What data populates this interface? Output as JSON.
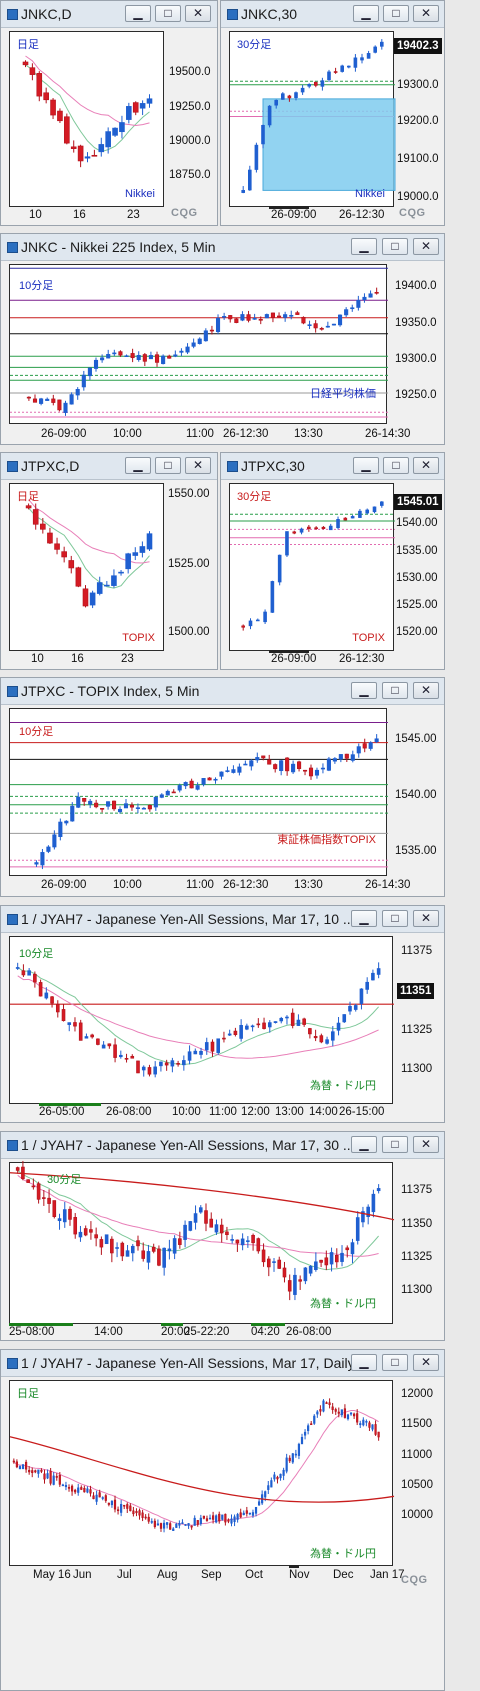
{
  "colors": {
    "up": "#1f5fd0",
    "down": "#b3121b",
    "ma_pink": "#e87fb8",
    "ma_green": "#7fc89a",
    "ma_red": "#c81c1c"
  },
  "windows": [
    {
      "id": "w1",
      "title": "JNKC,D",
      "period": "日足",
      "corner": "Nikkei",
      "corner_color": "#1a2fbf",
      "period_color": "#1a2fbf",
      "y_ticks": [
        "19500.0",
        "19250.0",
        "19000.0",
        "18750.0"
      ],
      "x_ticks": [
        "10",
        "16",
        "23"
      ]
    },
    {
      "id": "w2",
      "title": "JNKC,30",
      "period": "30分足",
      "corner": "Nikkei",
      "corner_color": "#1a2fbf",
      "period_color": "#1a2fbf",
      "price": "19402.3",
      "y_ticks": [
        "19300.0",
        "19200.0",
        "19100.0",
        "19000.0"
      ],
      "x_ticks": [
        "26-09:00",
        "26-12:30"
      ]
    },
    {
      "id": "w3",
      "title": "JNKC - Nikkei 225 Index, 5 Min",
      "period": "10分足",
      "corner": "日経平均株価",
      "corner_color": "#1a2fbf",
      "period_color": "#1a2fbf",
      "y_ticks": [
        "19400.0",
        "19350.0",
        "19300.0",
        "19250.0"
      ],
      "x_ticks": [
        "26-09:00",
        "10:00",
        "11:00",
        "26-12:30",
        "13:30",
        "26-14:30"
      ]
    },
    {
      "id": "w4",
      "title": "JTPXC,D",
      "period": "日足",
      "corner": "TOPIX",
      "corner_color": "#c81c1c",
      "period_color": "#c81c1c",
      "y_ticks": [
        "1550.00",
        "1525.00",
        "1500.00"
      ],
      "x_ticks": [
        "10",
        "16",
        "23"
      ]
    },
    {
      "id": "w5",
      "title": "JTPXC,30",
      "period": "30分足",
      "corner": "TOPIX",
      "corner_color": "#c81c1c",
      "period_color": "#c81c1c",
      "price": "1545.01",
      "y_ticks": [
        "1540.00",
        "1535.00",
        "1530.00",
        "1525.00",
        "1520.00"
      ],
      "x_ticks": [
        "26-09:00",
        "26-12:30"
      ]
    },
    {
      "id": "w6",
      "title": "JTPXC - TOPIX Index, 5 Min",
      "period": "10分足",
      "corner": "東証株価指数TOPIX",
      "corner_color": "#c81c1c",
      "period_color": "#c81c1c",
      "y_ticks": [
        "1545.00",
        "1540.00",
        "1535.00"
      ],
      "x_ticks": [
        "26-09:00",
        "10:00",
        "11:00",
        "26-12:30",
        "13:30",
        "26-14:30"
      ]
    },
    {
      "id": "w7",
      "title": "1 / JYAH7 - Japanese Yen-All Sessions, Mar 17, 10 ...",
      "period": "10分足",
      "corner": "為替・ドル円",
      "corner_color": "#1a8a2a",
      "period_color": "#1a8a2a",
      "price": "11351",
      "y_ticks": [
        "11375",
        "11325",
        "11300"
      ],
      "x_ticks": [
        "26-05:00",
        "26-08:00",
        "10:00",
        "11:00",
        "12:00",
        "13:00",
        "14:00",
        "26-15:00"
      ]
    },
    {
      "id": "w8",
      "title": "1 / JYAH7 - Japanese Yen-All Sessions, Mar 17, 30 ...",
      "period": "30分足",
      "corner": "為替・ドル円",
      "corner_color": "#1a8a2a",
      "period_color": "#1a8a2a",
      "y_ticks": [
        "11375",
        "11350",
        "11325",
        "11300"
      ],
      "x_ticks": [
        "25-08:00",
        "14:00",
        "20:00",
        "25-22:20",
        "04:20",
        "26-08:00"
      ]
    },
    {
      "id": "w9",
      "title": "1 / JYAH7 - Japanese Yen-All Sessions, Mar 17, Daily",
      "period": "日足",
      "corner": "為替・ドル円",
      "corner_color": "#1a8a2a",
      "period_color": "#1a8a2a",
      "y_ticks": [
        "12000",
        "11500",
        "11000",
        "10500",
        "10000"
      ],
      "x_ticks": [
        "May 16",
        "Jun",
        "Jul",
        "Aug",
        "Sep",
        "Oct",
        "Nov",
        "Dec",
        "Jan 17"
      ]
    }
  ],
  "logo": "CQG"
}
